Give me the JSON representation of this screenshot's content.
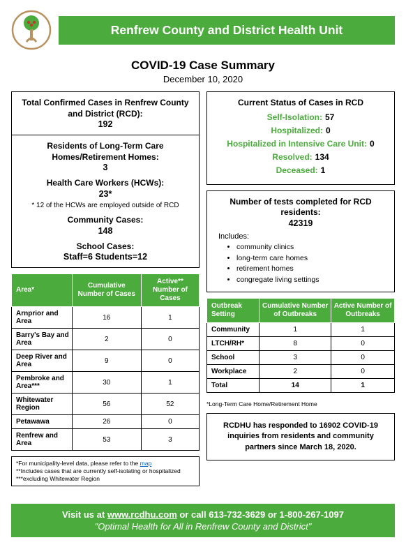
{
  "header": {
    "org": "Renfrew County and District Health Unit"
  },
  "title": "COVID-19 Case Summary",
  "date": "December 10, 2020",
  "left": {
    "totalLbl": "Total Confirmed Cases in Renfrew County and District (RCD):",
    "totalVal": "192",
    "ltcLbl": "Residents of Long-Term Care Homes/Retirement Homes:",
    "ltcVal": "3",
    "hcwLbl": "Health Care Workers (HCWs):",
    "hcwVal": "23*",
    "hcwNote": "* 12 of the HCWs are employed outside of RCD",
    "commLbl": "Community Cases:",
    "commVal": "148",
    "schoolLbl": "School Cases:",
    "schoolVal": "Staff=6   Students=12"
  },
  "areaHeaders": [
    "Area*",
    "Cumulative Number of Cases",
    "Active** Number of Cases"
  ],
  "areas": [
    [
      "Arnprior and Area",
      "16",
      "1"
    ],
    [
      "Barry's Bay and Area",
      "2",
      "0"
    ],
    [
      "Deep River and Area",
      "9",
      "0"
    ],
    [
      "Pembroke and Area***",
      "30",
      "1"
    ],
    [
      "Whitewater Region",
      "56",
      "52"
    ],
    [
      "Petawawa",
      "26",
      "0"
    ],
    [
      "Renfrew and Area",
      "53",
      "3"
    ]
  ],
  "areaFoot": {
    "l1": "*For municipality-level data, please refer to the ",
    "link": "map",
    "l2": "**Includes cases that are currently self-isolating or hospitalized",
    "l3": "***excluding Whitewater Region"
  },
  "status": {
    "title": "Current Status of Cases in RCD",
    "rows": [
      [
        "Self-Isolation:",
        "57"
      ],
      [
        "Hospitalized:",
        "0"
      ],
      [
        "Hospitalized in Intensive Care Unit:",
        "0"
      ],
      [
        "Resolved:",
        "134"
      ],
      [
        "Deceased:",
        "1"
      ]
    ]
  },
  "tests": {
    "lbl": "Number of tests completed for RCD residents:",
    "val": "42319",
    "incHead": "Includes:",
    "inc": [
      "community clinics",
      "long-term care homes",
      "retirement homes",
      "congregate living settings"
    ]
  },
  "outHeaders": [
    "Outbreak Setting",
    "Cumulative Number of Outbreaks",
    "Active Number of Outbreaks"
  ],
  "outbreaks": [
    [
      "Community",
      "1",
      "1"
    ],
    [
      "LTCH/RH*",
      "8",
      "0"
    ],
    [
      "School",
      "3",
      "0"
    ],
    [
      "Workplace",
      "2",
      "0"
    ],
    [
      "Total",
      "14",
      "1"
    ]
  ],
  "outNote": "*Long-Term Care Home/Retirement Home",
  "inquiry": "RCDHU has responded to 16902 COVID-19 inquiries from residents and community partners since March 18, 2020.",
  "footer": {
    "visit": "Visit us at ",
    "site": "www.rcdhu.com",
    "rest": " or call 613-732-3629 or 1-800-267-1097",
    "tag": "\"Optimal Health for All in Renfrew County and District\""
  }
}
